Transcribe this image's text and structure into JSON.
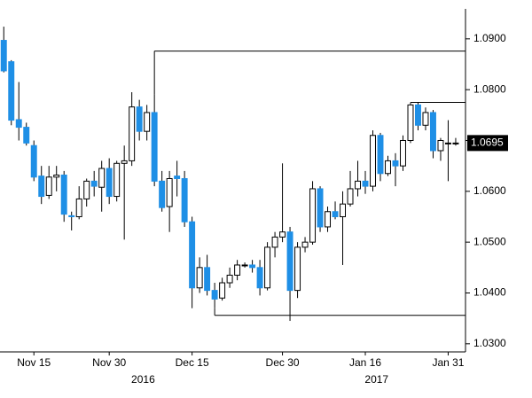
{
  "chart_data": {
    "type": "candlestick",
    "open": [
      1.0897,
      1.0855,
      1.0741,
      1.0726,
      1.069,
      1.063,
      1.0592,
      1.0628,
      1.0632,
      1.0552,
      1.055,
      1.0585,
      1.062,
      1.0608,
      1.0645,
      1.059,
      1.0655,
      1.066,
      1.0766,
      1.0718,
      1.0755,
      1.062,
      1.057,
      1.063,
      1.0625,
      1.054,
      1.041,
      1.045,
      1.0405,
      1.039,
      1.042,
      1.0435,
      1.0455,
      1.0455,
      1.045,
      1.041,
      1.049,
      1.051,
      1.052,
      1.0405,
      1.049,
      1.05,
      1.0605,
      1.053,
      1.056,
      1.055,
      1.0575,
      1.0605,
      1.062,
      1.061,
      1.071,
      1.0635,
      1.066,
      1.065,
      1.07,
      1.077,
      1.073,
      1.0755,
      1.068,
      1.0695,
      1.0695
    ],
    "high": [
      1.0924,
      1.0858,
      1.0815,
      1.0735,
      1.07,
      1.065,
      1.065,
      1.065,
      1.064,
      1.056,
      1.061,
      1.0625,
      1.064,
      1.066,
      1.0665,
      1.066,
      1.069,
      1.0795,
      1.078,
      1.077,
      1.079,
      1.064,
      1.064,
      1.066,
      1.064,
      1.055,
      1.047,
      1.0475,
      1.042,
      1.043,
      1.045,
      1.0465,
      1.046,
      1.0465,
      1.0465,
      1.05,
      1.052,
      1.0655,
      1.053,
      1.05,
      1.051,
      1.062,
      1.061,
      1.057,
      1.058,
      1.06,
      1.064,
      1.066,
      1.064,
      1.072,
      1.0715,
      1.067,
      1.0675,
      1.071,
      1.0775,
      1.0775,
      1.0765,
      1.076,
      1.0705,
      1.074,
      1.0705
    ],
    "low": [
      1.0834,
      1.073,
      1.07,
      1.069,
      1.062,
      1.0575,
      1.0585,
      1.06,
      1.054,
      1.0523,
      1.0545,
      1.057,
      1.059,
      1.056,
      1.0575,
      1.058,
      1.0505,
      1.065,
      1.07,
      1.07,
      1.061,
      1.056,
      1.052,
      1.059,
      1.053,
      1.037,
      1.04,
      1.0395,
      1.037,
      1.0385,
      1.041,
      1.0425,
      1.045,
      1.044,
      1.0395,
      1.0405,
      1.047,
      1.05,
      1.0345,
      1.039,
      1.048,
      1.0495,
      1.052,
      1.052,
      1.0545,
      1.0455,
      1.057,
      1.059,
      1.0595,
      1.06,
      1.062,
      1.063,
      1.061,
      1.064,
      1.0695,
      1.072,
      1.072,
      1.0665,
      1.066,
      1.062,
      1.069
    ],
    "close": [
      1.0837,
      1.074,
      1.0726,
      1.0695,
      1.0628,
      1.059,
      1.0628,
      1.0632,
      1.0555,
      1.055,
      1.0585,
      1.062,
      1.061,
      1.0645,
      1.059,
      1.0655,
      1.066,
      1.0766,
      1.0718,
      1.0755,
      1.062,
      1.0568,
      1.0625,
      1.0625,
      1.054,
      1.041,
      1.045,
      1.0405,
      1.0388,
      1.042,
      1.0435,
      1.0455,
      1.0455,
      1.045,
      1.041,
      1.049,
      1.051,
      1.052,
      1.0405,
      1.049,
      1.05,
      1.0605,
      1.053,
      1.056,
      1.055,
      1.0575,
      1.0605,
      1.062,
      1.061,
      1.071,
      1.0635,
      1.066,
      1.065,
      1.07,
      1.077,
      1.073,
      1.0755,
      1.068,
      1.07,
      1.0695,
      1.0695
    ],
    "up_color": "#ffffff",
    "down_color": "#1e8fe6",
    "xlim": [
      -0.5,
      61.3
    ],
    "xticks": [
      {
        "value": 4,
        "label": "Nov 15"
      },
      {
        "value": 14,
        "label": "Nov 30"
      },
      {
        "value": 25,
        "label": "Dec 15"
      },
      {
        "value": 37,
        "label": "Dec 30"
      },
      {
        "value": 48,
        "label": "Jan 16"
      },
      {
        "value": 59,
        "label": "Jan 31"
      }
    ],
    "year_labels": [
      {
        "value": 18.5,
        "label": "2016"
      },
      {
        "value": 49.5,
        "label": "2017"
      }
    ],
    "ylim": [
      1.0284,
      1.0959
    ],
    "yticks": [
      {
        "value": 1.03,
        "label": "1.0300"
      },
      {
        "value": 1.04,
        "label": "1.0400"
      },
      {
        "value": 1.05,
        "label": "1.0500"
      },
      {
        "value": 1.06,
        "label": "1.0600"
      },
      {
        "value": 1.07,
        "label": "1.0700"
      },
      {
        "value": 1.08,
        "label": "1.0800"
      },
      {
        "value": 1.09,
        "label": "1.0900"
      }
    ],
    "last_price": 1.0695,
    "levels": [
      {
        "value": 1.0876,
        "from": 20
      },
      {
        "value": 1.0775,
        "from": 54
      },
      {
        "value": 1.0356,
        "from": 28
      }
    ]
  }
}
